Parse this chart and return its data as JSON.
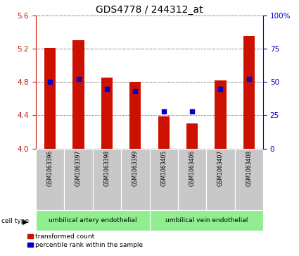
{
  "title": "GDS4778 / 244312_at",
  "samples": [
    "GSM1063396",
    "GSM1063397",
    "GSM1063398",
    "GSM1063399",
    "GSM1063405",
    "GSM1063406",
    "GSM1063407",
    "GSM1063408"
  ],
  "bar_values": [
    5.21,
    5.3,
    4.85,
    4.8,
    4.39,
    4.3,
    4.82,
    5.35
  ],
  "percentile_values": [
    50,
    52,
    45,
    43,
    28,
    28,
    45,
    52
  ],
  "bar_baseline": 4.0,
  "ylim": [
    4.0,
    5.6
  ],
  "yticks_left": [
    4.0,
    4.4,
    4.8,
    5.2,
    5.6
  ],
  "yticks_right": [
    0,
    25,
    50,
    75,
    100
  ],
  "bar_color": "#CC1100",
  "dot_color": "#0000CC",
  "grid_color": "#000000",
  "cell_group1_label": "umbilical artery endothelial",
  "cell_group2_label": "umbilical vein endothelial",
  "cell_color": "#90EE90",
  "legend_bar_label": "transformed count",
  "legend_dot_label": "percentile rank within the sample",
  "cell_type_label": "cell type",
  "bar_width": 0.4,
  "title_fontsize": 10,
  "tick_fontsize": 7.5,
  "sample_fontsize": 5.5,
  "celltype_fontsize": 6.5,
  "legend_fontsize": 6.5
}
